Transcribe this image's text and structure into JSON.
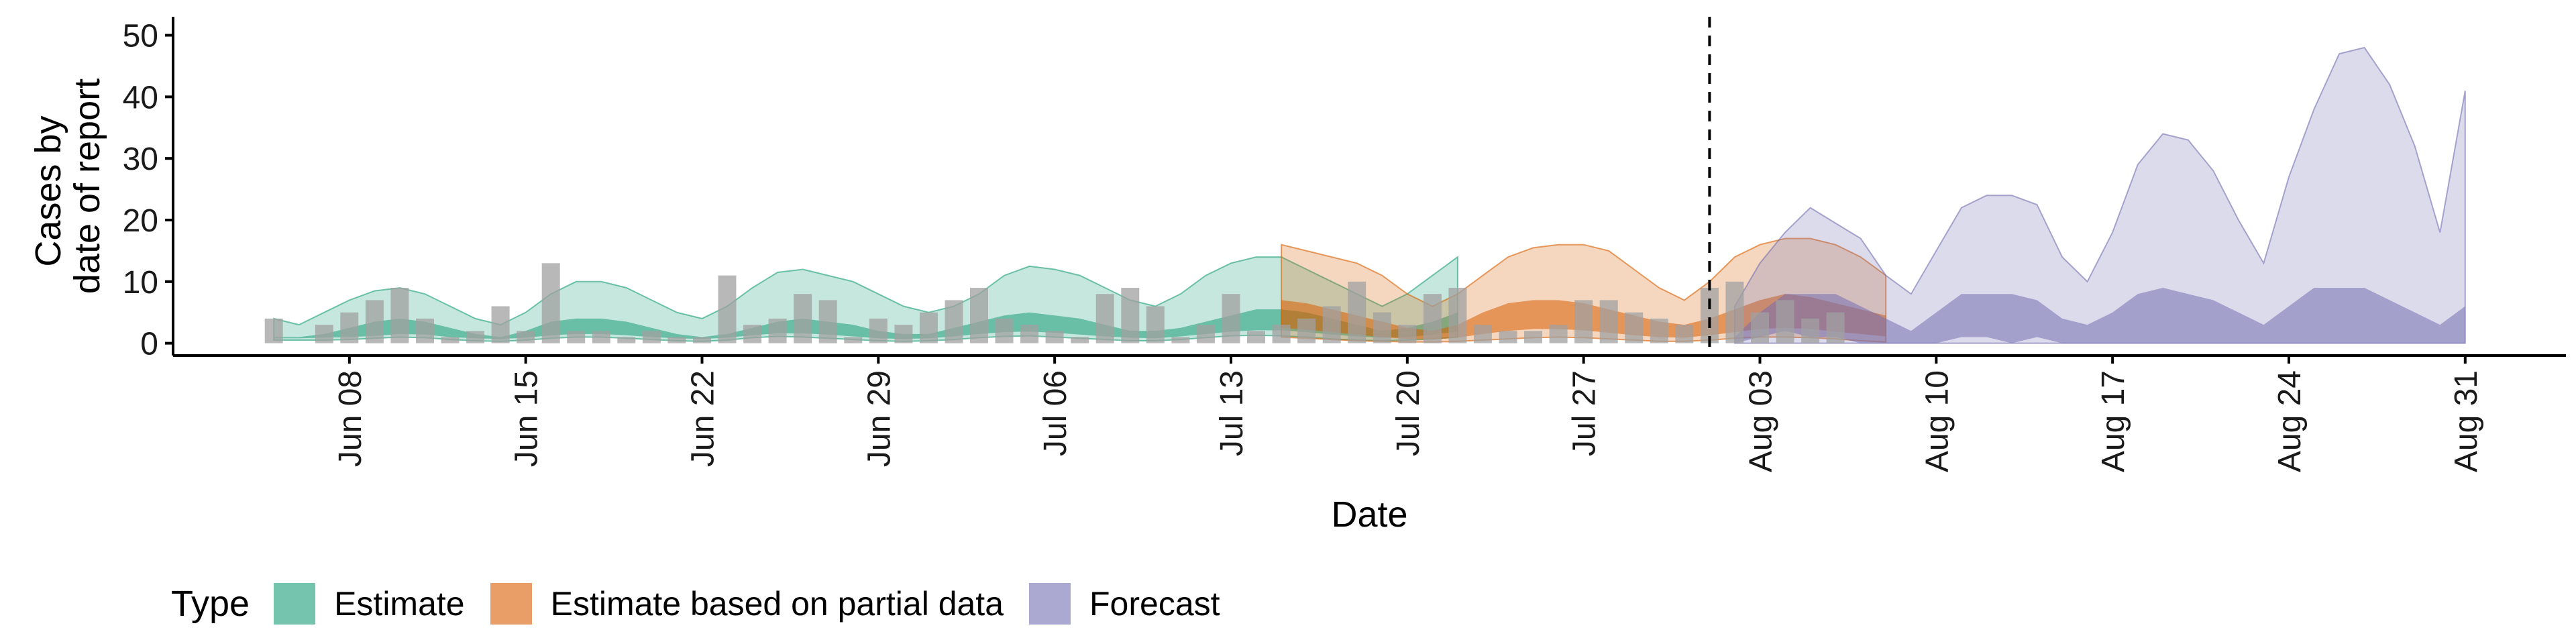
{
  "chart_data": {
    "type": "area",
    "title": "",
    "xlabel": "Date",
    "ylabel": [
      "Cases by",
      "date of report"
    ],
    "ylim": [
      -2,
      53
    ],
    "yticks": [
      0,
      10,
      20,
      30,
      40,
      50
    ],
    "xlim": [
      "2021-06-01",
      "2021-09-04"
    ],
    "xticks": [
      {
        "date": "2021-06-08",
        "label": "Jun 08"
      },
      {
        "date": "2021-06-15",
        "label": "Jun 15"
      },
      {
        "date": "2021-06-22",
        "label": "Jun 22"
      },
      {
        "date": "2021-06-29",
        "label": "Jun 29"
      },
      {
        "date": "2021-07-06",
        "label": "Jul 06"
      },
      {
        "date": "2021-07-13",
        "label": "Jul 13"
      },
      {
        "date": "2021-07-20",
        "label": "Jul 20"
      },
      {
        "date": "2021-07-27",
        "label": "Jul 27"
      },
      {
        "date": "2021-08-03",
        "label": "Aug 03"
      },
      {
        "date": "2021-08-10",
        "label": "Aug 10"
      },
      {
        "date": "2021-08-17",
        "label": "Aug 17"
      },
      {
        "date": "2021-08-24",
        "label": "Aug 24"
      },
      {
        "date": "2021-08-31",
        "label": "Aug 31"
      }
    ],
    "vline_date": "2021-08-01",
    "grid": false,
    "legend_position": "bottom",
    "legend_title": "Type",
    "series": [
      {
        "name": "Estimate",
        "color": "#1b9e77",
        "start_date": "2021-06-05",
        "upper90": [
          4,
          3,
          5,
          7,
          8.5,
          9,
          8,
          6,
          4,
          3,
          5,
          8,
          10,
          10,
          9,
          7,
          5,
          4,
          6,
          9,
          11.5,
          12,
          11,
          10,
          8,
          6,
          5,
          6,
          8,
          11,
          12.5,
          12,
          11,
          9,
          7,
          6,
          8,
          11,
          13,
          14,
          14,
          12,
          10,
          8,
          6,
          8,
          11,
          14
        ],
        "lower90": [
          0.5,
          0.5,
          0.5,
          0.6,
          0.8,
          1.0,
          0.9,
          0.6,
          0.4,
          0.3,
          0.5,
          0.8,
          1.0,
          1.0,
          0.8,
          0.6,
          0.4,
          0.3,
          0.5,
          0.9,
          1.1,
          1.0,
          0.8,
          0.6,
          0.4,
          0.3,
          0.4,
          0.6,
          0.9,
          1.1,
          1.2,
          1.0,
          0.8,
          0.6,
          0.4,
          0.4,
          0.6,
          0.9,
          1.2,
          1.3,
          1.2,
          1.0,
          0.7,
          0.5,
          0.4,
          0.5,
          0.7,
          1.0
        ],
        "upper50": [
          1.0,
          1.0,
          1.5,
          2.5,
          3.5,
          4.0,
          3.5,
          2.5,
          1.5,
          1.0,
          2.0,
          3.5,
          4.0,
          4.0,
          3.5,
          2.5,
          1.5,
          1.0,
          1.5,
          2.5,
          3.5,
          4.0,
          3.5,
          3.0,
          2.0,
          1.5,
          1.5,
          2.5,
          3.5,
          4.5,
          5.0,
          4.5,
          4.0,
          3.0,
          2.0,
          2.0,
          2.5,
          3.5,
          4.5,
          5.5,
          5.5,
          5.0,
          4.0,
          3.0,
          2.0,
          2.5,
          3.5,
          5.0
        ],
        "lower50": [
          0.8,
          0.8,
          0.9,
          1.0,
          1.2,
          1.5,
          1.4,
          1.0,
          0.8,
          0.7,
          0.9,
          1.3,
          1.5,
          1.5,
          1.3,
          1.0,
          0.8,
          0.7,
          0.9,
          1.3,
          1.6,
          1.6,
          1.4,
          1.1,
          0.8,
          0.7,
          0.8,
          1.1,
          1.5,
          1.8,
          1.9,
          1.7,
          1.4,
          1.1,
          0.9,
          0.8,
          1.1,
          1.5,
          1.9,
          2.1,
          2.1,
          1.8,
          1.4,
          1.1,
          0.9,
          1.0,
          1.4,
          1.9
        ]
      },
      {
        "name": "Estimate based on partial data",
        "color": "#d95f02",
        "start_date": "2021-07-15",
        "upper90": [
          16,
          15,
          14,
          13,
          11,
          8,
          6,
          8,
          11,
          14,
          15.5,
          16,
          16,
          15,
          12,
          9,
          7,
          10,
          14,
          16,
          17,
          17,
          16,
          14,
          11
        ],
        "lower90": [
          1.0,
          0.8,
          0.6,
          0.4,
          0.3,
          0.2,
          0.2,
          0.3,
          0.5,
          0.7,
          0.9,
          1.0,
          0.9,
          0.7,
          0.5,
          0.3,
          0.3,
          0.5,
          0.8,
          1.0,
          1.0,
          0.9,
          0.7,
          0.4,
          0.2
        ],
        "upper50": [
          7.0,
          6.5,
          5.5,
          4.5,
          3.5,
          2.5,
          2.0,
          3.0,
          5.0,
          6.5,
          7.0,
          7.0,
          6.5,
          5.5,
          4.5,
          3.5,
          3.0,
          4.0,
          5.5,
          7.0,
          8.0,
          7.5,
          6.5,
          5.5,
          4.5
        ],
        "lower50": [
          2.5,
          2.2,
          1.8,
          1.4,
          1.0,
          0.7,
          0.6,
          0.9,
          1.5,
          2.0,
          2.3,
          2.3,
          2.1,
          1.7,
          1.3,
          1.0,
          0.9,
          1.3,
          1.8,
          2.3,
          2.5,
          2.3,
          1.9,
          1.5,
          1.1
        ]
      },
      {
        "name": "Forecast",
        "color": "#7570b3",
        "start_date": "2021-08-02",
        "upper90": [
          6,
          13,
          18,
          22,
          19.5,
          17,
          11,
          8,
          15,
          22,
          24,
          24,
          22.5,
          14,
          10,
          18,
          29,
          34,
          33,
          28,
          20,
          13,
          27,
          38,
          47,
          48,
          42,
          32,
          18,
          41
        ],
        "lower90": [
          0,
          0,
          0,
          0,
          0,
          0,
          0,
          0,
          0,
          0,
          0,
          0,
          0,
          0,
          0,
          0,
          0,
          0,
          0,
          0,
          0,
          0,
          0,
          0,
          0,
          0,
          0,
          0,
          0,
          0
        ],
        "upper50": [
          1,
          5,
          8,
          8,
          8,
          6,
          4,
          2,
          5,
          8,
          8,
          8,
          7,
          4,
          3,
          5,
          8,
          9,
          8,
          7,
          5,
          3,
          6,
          9,
          9,
          9,
          7,
          5,
          3,
          6
        ],
        "lower50": [
          0,
          1,
          2,
          1,
          1,
          0,
          0,
          0,
          0,
          1,
          1,
          0,
          1,
          0,
          0,
          0,
          0,
          0,
          0,
          0,
          0,
          0,
          0,
          0,
          0,
          0,
          0,
          0,
          0,
          0
        ]
      }
    ],
    "reported_cases": {
      "name": "Reported cases",
      "color": "#a0a0a0",
      "start_date": "2021-06-05",
      "values": [
        4,
        0,
        3,
        5,
        7,
        9,
        4,
        1,
        2,
        6,
        2,
        13,
        2,
        2,
        1,
        2,
        1,
        1,
        11,
        3,
        4,
        8,
        7,
        1,
        4,
        3,
        5,
        7,
        9,
        4,
        3,
        2,
        1,
        8,
        9,
        6,
        1,
        3,
        8,
        2,
        3,
        4,
        6,
        10,
        5,
        3,
        8,
        9,
        3,
        2,
        2,
        3,
        7,
        7,
        5,
        4,
        3,
        9,
        10,
        5,
        7,
        4,
        5
      ]
    }
  }
}
